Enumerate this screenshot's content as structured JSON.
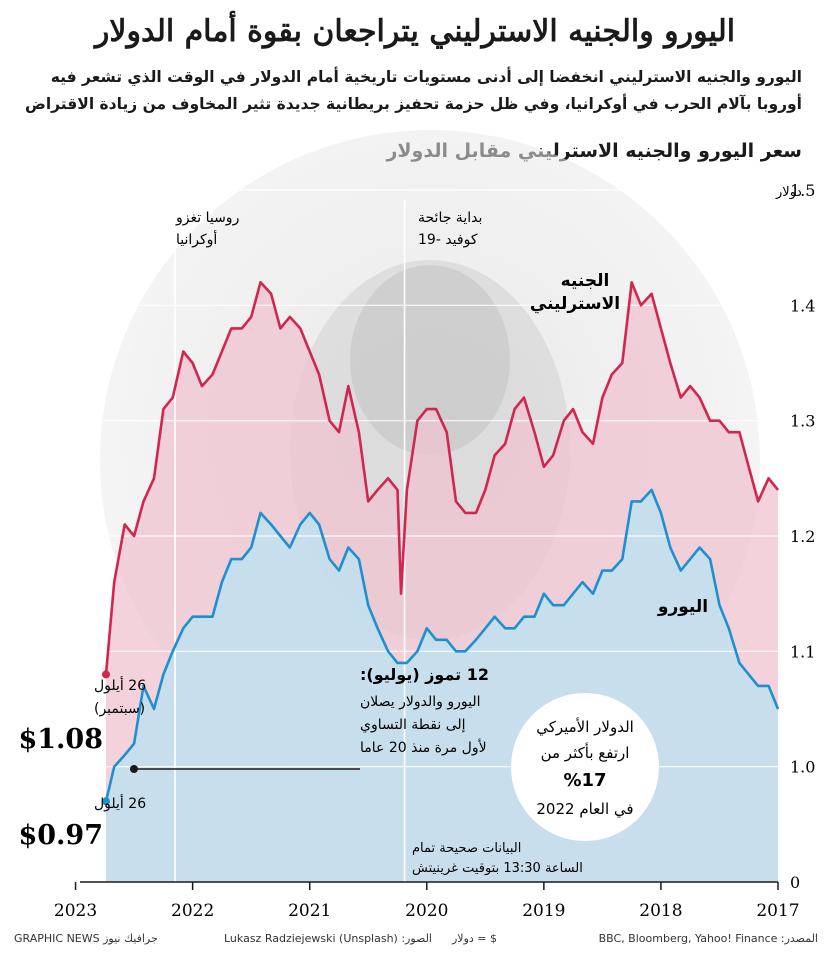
{
  "title": "اليورو والجنيه الاسترليني يتراجعان بقوة أمام الدولار",
  "subtitle": "اليورو والجنيه الاسترليني انخفضا إلى أدنى مستويات تاريخية أمام الدولار في الوقت الذي تشعر فيه أوروبا بآلام الحرب في أوكرانيا، وفي ظل حزمة تحفيز بريطانية جديدة تثير المخاوف من زيادة الاقتراض",
  "chart_title": "سعر اليورو والجنيه الاسترليني مقابل الدولار",
  "colors": {
    "gbp": "#d0264f",
    "eur": "#1e90d0",
    "gbp_fill": "#efc3cf",
    "eur_fill": "#bfe1f0"
  },
  "chart_data": {
    "type": "line",
    "ylabel": "دولار",
    "ylim": [
      0.9,
      1.5
    ],
    "x_range": [
      2017.0,
      2022.74
    ],
    "x_ticks": [
      {
        "value": 2017,
        "label": "2017"
      },
      {
        "value": 2018,
        "label": "2018"
      },
      {
        "value": 2019,
        "label": "2019"
      },
      {
        "value": 2020,
        "label": "2020"
      },
      {
        "value": 2021,
        "label": "2021"
      },
      {
        "value": 2022,
        "label": "2022"
      },
      {
        "value": 2023,
        "label": "2023"
      }
    ],
    "y_ticks": [
      {
        "value": 1.5,
        "label": "1.5"
      },
      {
        "value": 1.4,
        "label": "1.4"
      },
      {
        "value": 1.3,
        "label": "1.3"
      },
      {
        "value": 1.2,
        "label": "1.2"
      },
      {
        "value": 1.1,
        "label": "1.1"
      },
      {
        "value": 1.0,
        "label": "1.0"
      },
      {
        "value": 0.9,
        "label": "0"
      }
    ],
    "series": [
      {
        "name": "الجنيه الاسترليني",
        "key": "gbp",
        "x": [
          2017.0,
          2017.08,
          2017.17,
          2017.25,
          2017.33,
          2017.42,
          2017.5,
          2017.58,
          2017.67,
          2017.75,
          2017.83,
          2017.92,
          2018.0,
          2018.08,
          2018.17,
          2018.25,
          2018.33,
          2018.42,
          2018.5,
          2018.58,
          2018.67,
          2018.75,
          2018.83,
          2018.92,
          2019.0,
          2019.08,
          2019.17,
          2019.25,
          2019.33,
          2019.42,
          2019.5,
          2019.58,
          2019.67,
          2019.75,
          2019.83,
          2019.92,
          2020.0,
          2020.08,
          2020.17,
          2020.22,
          2020.25,
          2020.33,
          2020.42,
          2020.5,
          2020.58,
          2020.67,
          2020.75,
          2020.83,
          2020.92,
          2021.0,
          2021.08,
          2021.17,
          2021.25,
          2021.33,
          2021.42,
          2021.5,
          2021.58,
          2021.67,
          2021.75,
          2021.83,
          2021.92,
          2022.0,
          2022.08,
          2022.17,
          2022.25,
          2022.33,
          2022.42,
          2022.5,
          2022.58,
          2022.67,
          2022.74
        ],
        "values": [
          1.24,
          1.25,
          1.23,
          1.26,
          1.29,
          1.29,
          1.3,
          1.3,
          1.32,
          1.33,
          1.32,
          1.35,
          1.38,
          1.41,
          1.4,
          1.42,
          1.35,
          1.34,
          1.32,
          1.28,
          1.29,
          1.31,
          1.3,
          1.27,
          1.26,
          1.29,
          1.32,
          1.31,
          1.28,
          1.27,
          1.24,
          1.22,
          1.22,
          1.23,
          1.29,
          1.31,
          1.31,
          1.3,
          1.24,
          1.15,
          1.24,
          1.25,
          1.24,
          1.23,
          1.29,
          1.33,
          1.29,
          1.3,
          1.34,
          1.36,
          1.38,
          1.39,
          1.38,
          1.41,
          1.42,
          1.39,
          1.38,
          1.38,
          1.36,
          1.34,
          1.33,
          1.35,
          1.36,
          1.32,
          1.31,
          1.25,
          1.23,
          1.2,
          1.21,
          1.16,
          1.08
        ]
      },
      {
        "name": "اليورو",
        "key": "eur",
        "x": [
          2017.0,
          2017.08,
          2017.17,
          2017.25,
          2017.33,
          2017.42,
          2017.5,
          2017.58,
          2017.67,
          2017.75,
          2017.83,
          2017.92,
          2018.0,
          2018.08,
          2018.17,
          2018.25,
          2018.33,
          2018.42,
          2018.5,
          2018.58,
          2018.67,
          2018.75,
          2018.83,
          2018.92,
          2019.0,
          2019.08,
          2019.17,
          2019.25,
          2019.33,
          2019.42,
          2019.5,
          2019.58,
          2019.67,
          2019.75,
          2019.83,
          2019.92,
          2020.0,
          2020.08,
          2020.17,
          2020.25,
          2020.33,
          2020.42,
          2020.5,
          2020.58,
          2020.67,
          2020.75,
          2020.83,
          2020.92,
          2021.0,
          2021.08,
          2021.17,
          2021.25,
          2021.33,
          2021.42,
          2021.5,
          2021.58,
          2021.67,
          2021.75,
          2021.83,
          2021.92,
          2022.0,
          2022.08,
          2022.17,
          2022.25,
          2022.33,
          2022.42,
          2022.5,
          2022.58,
          2022.67,
          2022.74
        ],
        "values": [
          1.05,
          1.07,
          1.07,
          1.08,
          1.09,
          1.12,
          1.14,
          1.18,
          1.19,
          1.18,
          1.17,
          1.19,
          1.22,
          1.24,
          1.23,
          1.23,
          1.18,
          1.17,
          1.17,
          1.15,
          1.16,
          1.15,
          1.14,
          1.14,
          1.15,
          1.13,
          1.13,
          1.12,
          1.12,
          1.13,
          1.12,
          1.11,
          1.1,
          1.1,
          1.11,
          1.11,
          1.12,
          1.1,
          1.09,
          1.09,
          1.1,
          1.12,
          1.14,
          1.18,
          1.19,
          1.17,
          1.18,
          1.21,
          1.22,
          1.21,
          1.19,
          1.2,
          1.21,
          1.22,
          1.19,
          1.18,
          1.18,
          1.16,
          1.13,
          1.13,
          1.13,
          1.12,
          1.1,
          1.08,
          1.05,
          1.07,
          1.02,
          1.01,
          1.0,
          0.97
        ]
      }
    ],
    "annotations": [
      {
        "x": 2022.15,
        "text": "روسيا تغزو أوكرانيا"
      },
      {
        "x": 2020.19,
        "text": "بداية جائحة كوفيد -19"
      },
      {
        "x": 2022.53,
        "date": "12 تموز (يوليو):",
        "text": "اليورو والدولار يصلان إلى نقطة التساوي لأول مرة منذ 20 عاما"
      }
    ]
  },
  "labels": {
    "gbp_line1": "الجنيه",
    "gbp_line2": "الاسترليني",
    "eur": "اليورو"
  },
  "endpoints": {
    "gbp_date": "26 أيلول",
    "gbp_month": "(سبتمبر)",
    "gbp_value": "$1.08",
    "eur_date": "26 أيلول",
    "eur_value": "$0.97"
  },
  "callout": {
    "line1": "الدولار الأميركي",
    "line2": "ارتفع بأكثر من",
    "line3": "%17",
    "line4": "في العام 2022"
  },
  "data_note": {
    "line1": "البيانات صحيحة تمام",
    "line2": "الساعة 13:30 بتوقيت غرينيتش"
  },
  "footer": {
    "source": "المصدر: BBC, Bloomberg, Yahoo! Finance",
    "usd": "$ = دولار",
    "photo": "الصور: Lukasz Radziejewski (Unsplash)",
    "publisher": "GRAPHIC NEWS جرافيك نيوز"
  }
}
